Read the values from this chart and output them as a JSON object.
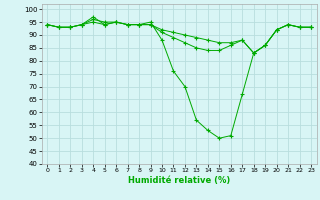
{
  "xlabel": "Humidité relative (%)",
  "xlim": [
    -0.5,
    23.5
  ],
  "ylim": [
    40,
    102
  ],
  "yticks": [
    40,
    45,
    50,
    55,
    60,
    65,
    70,
    75,
    80,
    85,
    90,
    95,
    100
  ],
  "xticks": [
    0,
    1,
    2,
    3,
    4,
    5,
    6,
    7,
    8,
    9,
    10,
    11,
    12,
    13,
    14,
    15,
    16,
    17,
    18,
    19,
    20,
    21,
    22,
    23
  ],
  "background_color": "#d8f5f5",
  "grid_color": "#b8dede",
  "line_color": "#00aa00",
  "series": [
    [
      94,
      93,
      93,
      94,
      97,
      94,
      95,
      94,
      94,
      95,
      88,
      76,
      70,
      57,
      53,
      50,
      51,
      67,
      83,
      86,
      92,
      94,
      93,
      93
    ],
    [
      94,
      93,
      93,
      94,
      96,
      95,
      95,
      94,
      94,
      94,
      91,
      89,
      87,
      85,
      84,
      84,
      86,
      88,
      83,
      86,
      92,
      94,
      93,
      93
    ],
    [
      94,
      93,
      93,
      94,
      95,
      94,
      95,
      94,
      94,
      94,
      92,
      91,
      90,
      89,
      88,
      87,
      87,
      88,
      83,
      86,
      92,
      94,
      93,
      93
    ]
  ]
}
